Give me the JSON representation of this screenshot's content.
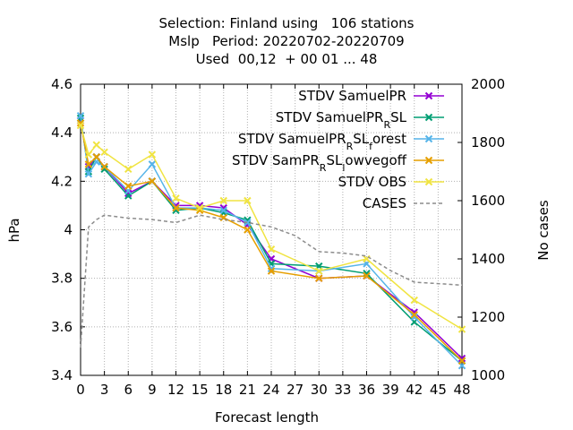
{
  "chart_data": {
    "type": "line",
    "title_lines": [
      "Selection: Finland using   106 stations",
      "Mslp   Period: 20220702-20220709",
      "Used  00,12  + 00 01 ... 48"
    ],
    "xlabel": "Forecast length",
    "ylabel": "hPa",
    "y2label": "No cases",
    "xlim": [
      0,
      48
    ],
    "ylim": [
      3.4,
      4.6
    ],
    "y2lim": [
      1000,
      2000
    ],
    "xticks": [
      "0",
      "3",
      "6",
      "9",
      "12",
      "15",
      "18",
      "21",
      "24",
      "27",
      "30",
      "33",
      "36",
      "39",
      "42",
      "45",
      "48"
    ],
    "yticks": [
      "3.4",
      "3.6",
      "3.8",
      "4",
      "4.2",
      "4.4",
      "4.6"
    ],
    "y2ticks": [
      "1000",
      "1200",
      "1400",
      "1600",
      "1800",
      "2000"
    ],
    "grid": true,
    "legend_position": "top-right",
    "series": [
      {
        "name": "STDV SamuelPR",
        "legend_main": "STDV SamuelPR",
        "legend_sub": "",
        "legend_tail": "",
        "color": "#9400d3",
        "marker": "x",
        "dash": "",
        "x": [
          0,
          1,
          2,
          3,
          6,
          9,
          12,
          15,
          18,
          21,
          24,
          30,
          36,
          42,
          48
        ],
        "y": [
          4.45,
          4.26,
          4.3,
          4.26,
          4.15,
          4.2,
          4.1,
          4.1,
          4.09,
          4.02,
          3.88,
          3.8,
          3.81,
          3.66,
          3.47
        ]
      },
      {
        "name": "STDV SamuelPR_R SL",
        "legend_main": "STDV SamuelPR",
        "legend_sub": "R",
        "legend_tail": "SL",
        "color": "#009e73",
        "marker": "x",
        "dash": "",
        "x": [
          0,
          1,
          2,
          3,
          6,
          9,
          12,
          15,
          18,
          21,
          24,
          30,
          36,
          42,
          48
        ],
        "y": [
          4.46,
          4.24,
          4.3,
          4.25,
          4.14,
          4.2,
          4.08,
          4.09,
          4.07,
          4.04,
          3.86,
          3.85,
          3.82,
          3.62,
          3.46
        ]
      },
      {
        "name": "STDV SamuelPR_R SL_forest",
        "legend_main": "STDV SamuelPR",
        "legend_sub": "R",
        "legend_tail": "SL",
        "legend_sub2": "f",
        "legend_tail2": "orest",
        "color": "#56b4e9",
        "marker": "x",
        "dash": "",
        "x": [
          0,
          1,
          2,
          3,
          6,
          9,
          12,
          15,
          18,
          21,
          24,
          30,
          36,
          42,
          48
        ],
        "y": [
          4.47,
          4.23,
          4.28,
          4.26,
          4.16,
          4.27,
          4.09,
          4.09,
          4.08,
          4.03,
          3.84,
          3.83,
          3.86,
          3.64,
          3.44
        ]
      },
      {
        "name": "STDV SamPR_R SL_lowvegoff",
        "legend_main": "STDV SamPR",
        "legend_sub": "R",
        "legend_tail": "SL",
        "legend_sub2": "l",
        "legend_tail2": "owvegoff",
        "color": "#e69f00",
        "marker": "x",
        "dash": "",
        "x": [
          0,
          1,
          2,
          3,
          6,
          9,
          12,
          15,
          18,
          21,
          24,
          30,
          36,
          42,
          48
        ],
        "y": [
          4.44,
          4.27,
          4.3,
          4.26,
          4.18,
          4.2,
          4.09,
          4.08,
          4.05,
          4.0,
          3.83,
          3.8,
          3.81,
          3.65,
          3.46
        ]
      },
      {
        "name": "STDV OBS",
        "legend_main": "STDV OBS",
        "legend_sub": "",
        "legend_tail": "",
        "color": "#f0e442",
        "marker": "x",
        "dash": "",
        "x": [
          0,
          1,
          2,
          3,
          6,
          9,
          12,
          15,
          18,
          21,
          24,
          30,
          36,
          42,
          48
        ],
        "y": [
          4.43,
          4.31,
          4.35,
          4.32,
          4.25,
          4.31,
          4.13,
          4.09,
          4.12,
          4.12,
          3.92,
          3.83,
          3.88,
          3.71,
          3.59
        ]
      },
      {
        "name": "CASES",
        "legend_main": "CASES",
        "legend_sub": "",
        "legend_tail": "",
        "color": "#8c8c8c",
        "marker": "none",
        "dash": "4,3",
        "axis": "y2",
        "x": [
          0,
          1,
          2,
          3,
          6,
          9,
          12,
          15,
          18,
          21,
          24,
          27,
          30,
          33,
          36,
          39,
          42,
          45,
          48
        ],
        "y": [
          1095,
          1510,
          1535,
          1550,
          1540,
          1535,
          1525,
          1550,
          1535,
          1525,
          1510,
          1480,
          1425,
          1420,
          1410,
          1360,
          1320,
          1315,
          1310
        ]
      }
    ]
  }
}
